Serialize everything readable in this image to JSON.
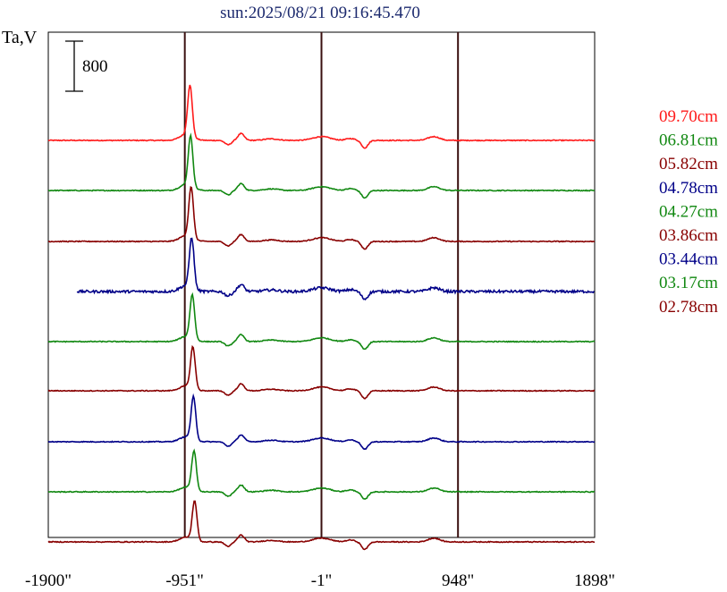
{
  "chart_data": {
    "type": "line",
    "title": "sun:2025/08/21 09:16:45.470",
    "ylabel": "Ta,V",
    "scale_bar_label": "800",
    "xlim": [
      -1900,
      1898
    ],
    "x_ticks": [
      -1900,
      -951,
      -1,
      948,
      1898
    ],
    "x_tick_labels": [
      "-1900\"",
      "-951\"",
      "-1\"",
      "948\"",
      "1898\""
    ],
    "vertical_lines": [
      -951,
      -1,
      948
    ],
    "series": [
      {
        "name": "09.70cm",
        "color": "#ff1a1a",
        "peak": 800
      },
      {
        "name": "06.81cm",
        "color": "#118811",
        "peak": 800
      },
      {
        "name": "05.82cm",
        "color": "#880000",
        "peak": 800
      },
      {
        "name": "04.78cm",
        "color": "#000088",
        "peak": 800
      },
      {
        "name": "04.27cm",
        "color": "#118811",
        "peak": 700
      },
      {
        "name": "03.86cm",
        "color": "#880000",
        "peak": 660
      },
      {
        "name": "03.44cm",
        "color": "#000088",
        "peak": 680
      },
      {
        "name": "03.17cm",
        "color": "#118811",
        "peak": 620
      },
      {
        "name": "02.78cm",
        "color": "#880000",
        "peak": 630
      }
    ]
  }
}
